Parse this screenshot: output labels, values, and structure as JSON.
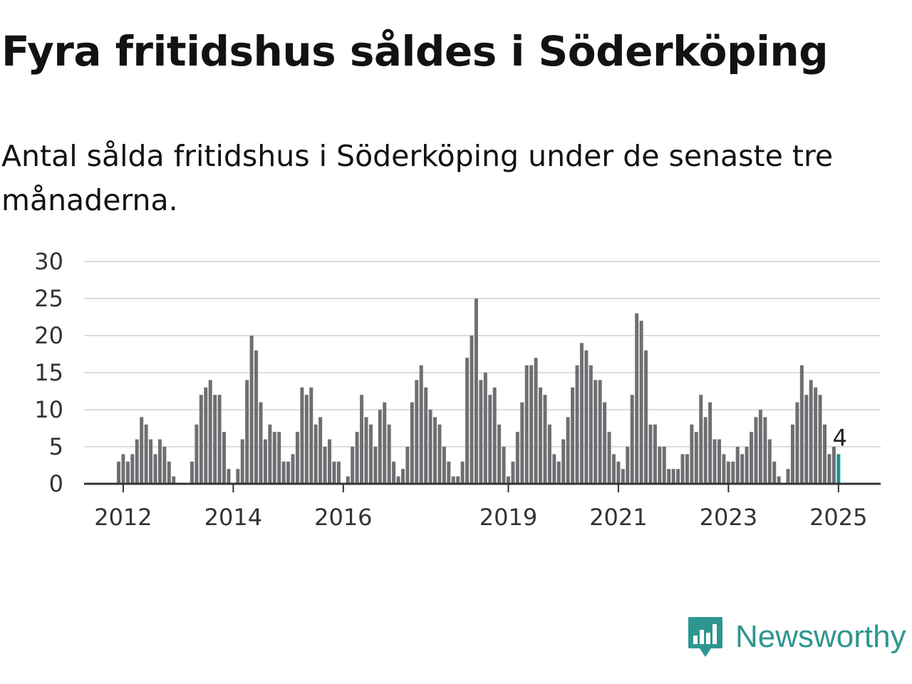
{
  "title": "Fyra fritidshus såldes i Söderköping",
  "subtitle": "Antal sålda fritidshus i Söderköping under de senaste tre månaderna.",
  "brand": {
    "name": "Newsworthy",
    "color": "#2e9690"
  },
  "colors": {
    "bar": "#6f6e72",
    "highlight": "#17968f"
  },
  "chart_data": {
    "type": "bar",
    "ylim": [
      0,
      30
    ],
    "yticks": [
      0,
      5,
      10,
      15,
      20,
      25,
      30
    ],
    "xticks": [
      {
        "label": "2012",
        "index": 1
      },
      {
        "label": "2014",
        "index": 25
      },
      {
        "label": "2016",
        "index": 49
      },
      {
        "label": "2019",
        "index": 85
      },
      {
        "label": "2021",
        "index": 109
      },
      {
        "label": "2023",
        "index": 133
      },
      {
        "label": "2025",
        "index": 157
      }
    ],
    "grid": true,
    "start_month": "2011-12",
    "end_month": "2025-01",
    "values": [
      3,
      4,
      3,
      4,
      6,
      9,
      8,
      6,
      4,
      6,
      5,
      3,
      1,
      0,
      0,
      0,
      3,
      8,
      12,
      13,
      14,
      12,
      12,
      7,
      2,
      0,
      2,
      6,
      14,
      20,
      18,
      11,
      6,
      8,
      7,
      7,
      3,
      3,
      4,
      7,
      13,
      12,
      13,
      8,
      9,
      5,
      6,
      3,
      3,
      0,
      1,
      5,
      7,
      12,
      9,
      8,
      5,
      10,
      11,
      8,
      3,
      1,
      2,
      5,
      11,
      14,
      16,
      13,
      10,
      9,
      8,
      5,
      3,
      1,
      1,
      3,
      17,
      20,
      25,
      14,
      15,
      12,
      13,
      8,
      5,
      1,
      3,
      7,
      11,
      16,
      16,
      17,
      13,
      12,
      8,
      4,
      3,
      6,
      9,
      13,
      16,
      19,
      18,
      16,
      14,
      14,
      11,
      7,
      4,
      3,
      2,
      5,
      12,
      23,
      22,
      18,
      8,
      8,
      5,
      5,
      2,
      2,
      2,
      4,
      4,
      8,
      7,
      12,
      9,
      11,
      6,
      6,
      4,
      3,
      3,
      5,
      4,
      5,
      7,
      9,
      10,
      9,
      6,
      3,
      1,
      0,
      2,
      8,
      11,
      16,
      12,
      14,
      13,
      12,
      8,
      4,
      5,
      4
    ],
    "highlight_index": 157,
    "data_label": "4"
  }
}
